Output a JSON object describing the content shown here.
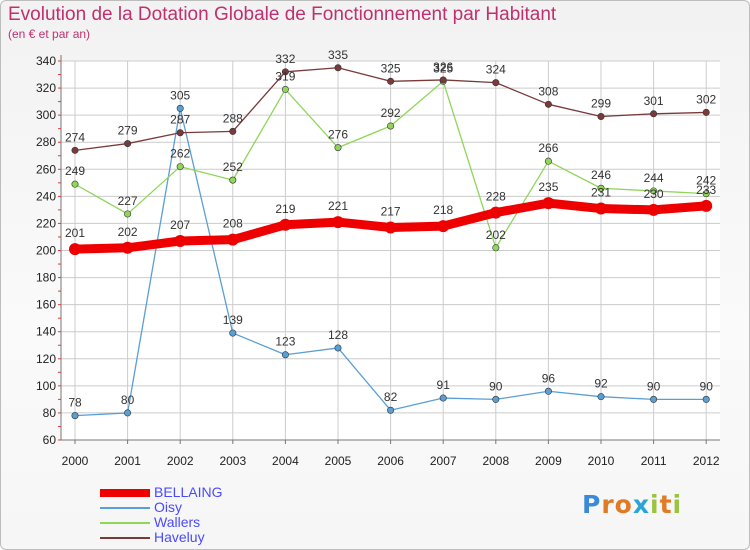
{
  "title": "Evolution de la Dotation Globale de Fonctionnement par Habitant",
  "subtitle": "(en € et par an)",
  "logo": {
    "letters": [
      "P",
      "r",
      "o",
      "x",
      "i",
      "t",
      "i"
    ],
    "colors": [
      "#3a8ad6",
      "#e07a24",
      "#e07a24",
      "#2aa5d8",
      "#9ac43d",
      "#e07a24",
      "#9ac43d"
    ]
  },
  "chart_data": {
    "type": "line",
    "title": "Evolution de la Dotation Globale de Fonctionnement par Habitant",
    "ylabel": "(en € et par an)",
    "xlabel": "",
    "ylim": [
      60,
      340
    ],
    "yticks": [
      60,
      80,
      100,
      120,
      140,
      160,
      180,
      200,
      220,
      240,
      260,
      280,
      300,
      320,
      340
    ],
    "x": [
      "2000",
      "2001",
      "2002",
      "2003",
      "2004",
      "2005",
      "2006",
      "2007",
      "2008",
      "2009",
      "2010",
      "2011",
      "2012"
    ],
    "series": [
      {
        "name": "BELLAING",
        "color": "#ee0000",
        "values": [
          201,
          202,
          207,
          208,
          219,
          221,
          217,
          218,
          228,
          235,
          231,
          230,
          233
        ]
      },
      {
        "name": "Oisy",
        "color": "#5a9fd4",
        "values": [
          78,
          80,
          305,
          139,
          123,
          128,
          82,
          91,
          90,
          96,
          92,
          90,
          90
        ]
      },
      {
        "name": "Wallers",
        "color": "#8fd65a",
        "values": [
          249,
          227,
          262,
          252,
          319,
          276,
          292,
          325,
          202,
          266,
          246,
          244,
          242
        ]
      },
      {
        "name": "Haveluy",
        "color": "#7a3a3a",
        "values": [
          274,
          279,
          287,
          288,
          332,
          335,
          325,
          326,
          324,
          308,
          299,
          301,
          302
        ]
      }
    ]
  }
}
